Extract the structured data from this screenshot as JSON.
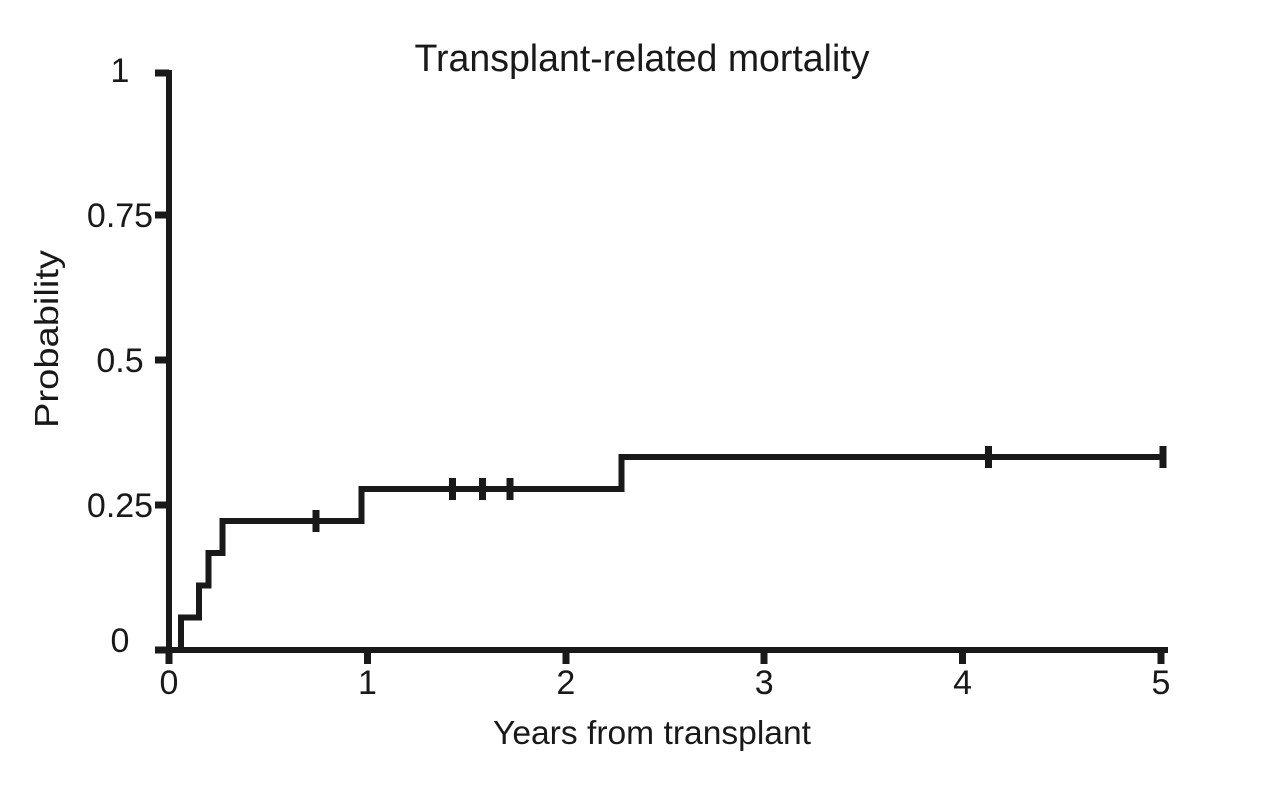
{
  "chart_data": {
    "type": "line",
    "subtype": "kaplan-meier-step",
    "title": "Transplant-related mortality",
    "xlabel": "Years from transplant",
    "ylabel": "Probability",
    "xlim": [
      0,
      5
    ],
    "ylim": [
      0,
      1
    ],
    "xticks": [
      0,
      1,
      2,
      3,
      4,
      5
    ],
    "xtick_labels": [
      "0",
      "1",
      "2",
      "3",
      "4",
      "5"
    ],
    "yticks": [
      0,
      0.25,
      0.5,
      0.75,
      1
    ],
    "ytick_labels": [
      "0",
      "0.25",
      "0.5",
      "0.75",
      "1"
    ],
    "grid": false,
    "legend": "none",
    "line_color": "#191919",
    "background_color": "#ffffff",
    "series": [
      {
        "name": "Transplant-related mortality",
        "start": {
          "time": 0.06,
          "prob": 0
        },
        "steps": [
          {
            "time": 0.06,
            "prob": 0.056
          },
          {
            "time": 0.15,
            "prob": 0.111
          },
          {
            "time": 0.2,
            "prob": 0.167
          },
          {
            "time": 0.27,
            "prob": 0.222
          },
          {
            "time": 0.97,
            "prob": 0.278
          },
          {
            "time": 2.28,
            "prob": 0.333
          }
        ],
        "final_prob": 0.333,
        "end_time": 5.0,
        "censor_marks": [
          {
            "time": 0.74,
            "prob": 0.222
          },
          {
            "time": 1.43,
            "prob": 0.278
          },
          {
            "time": 1.58,
            "prob": 0.278
          },
          {
            "time": 1.72,
            "prob": 0.278
          },
          {
            "time": 4.13,
            "prob": 0.333
          },
          {
            "time": 5.0,
            "prob": 0.333
          }
        ]
      }
    ]
  }
}
